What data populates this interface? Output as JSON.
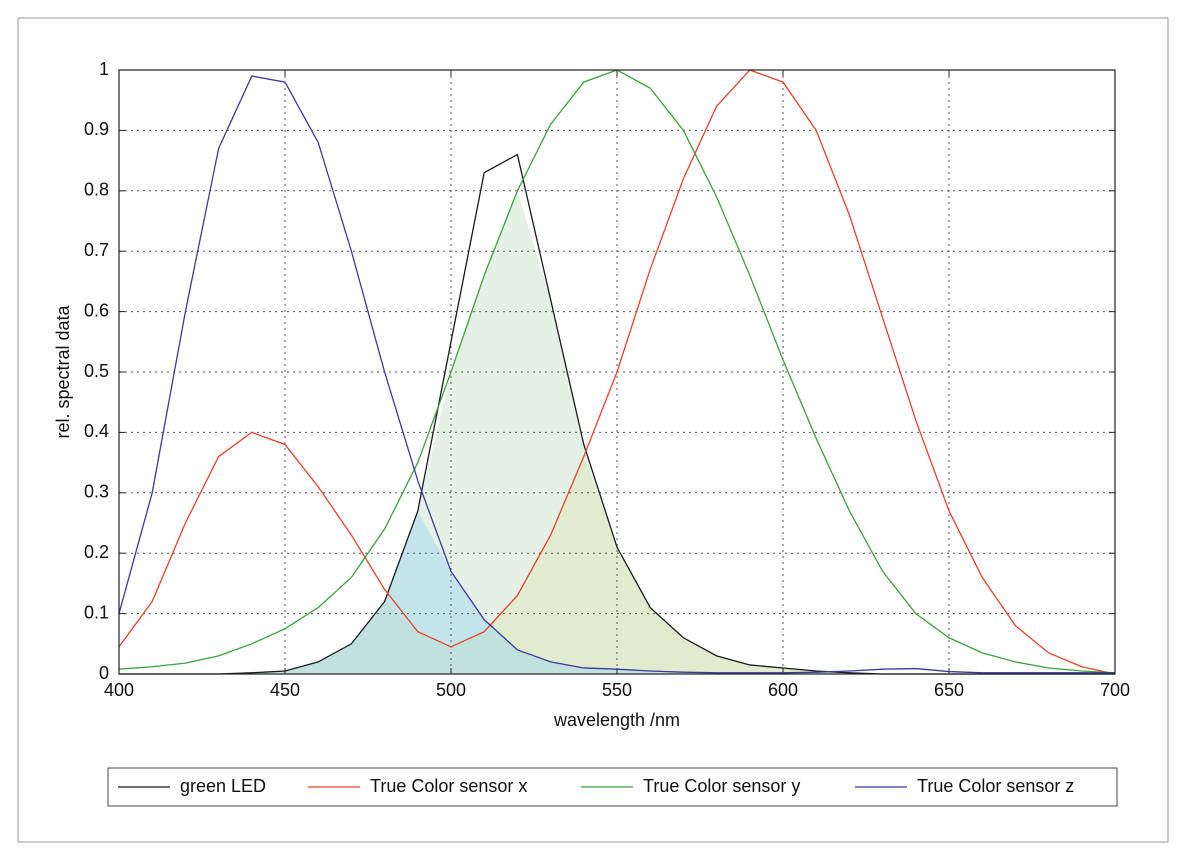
{
  "chart_data": {
    "type": "line",
    "x_label": "wavelength /nm",
    "y_label": "rel. spectral data",
    "x": [
      400,
      410,
      420,
      430,
      440,
      450,
      460,
      470,
      480,
      490,
      500,
      510,
      520,
      530,
      540,
      550,
      560,
      570,
      580,
      590,
      600,
      610,
      620,
      630,
      640,
      650,
      660,
      670,
      680,
      690,
      700
    ],
    "series": [
      {
        "name": "green LED",
        "color": "#1a1a1a",
        "values": [
          0,
          0,
          0,
          0,
          0.002,
          0.005,
          0.02,
          0.05,
          0.12,
          0.27,
          0.55,
          0.83,
          0.86,
          0.62,
          0.38,
          0.21,
          0.11,
          0.06,
          0.03,
          0.015,
          0.01,
          0.005,
          0.002,
          0,
          0,
          0,
          0,
          0,
          0,
          0,
          0
        ]
      },
      {
        "name": "True Color sensor x",
        "color": "#e8402a",
        "fill": "#f0e6a0",
        "values": [
          0.045,
          0.12,
          0.25,
          0.36,
          0.4,
          0.38,
          0.31,
          0.23,
          0.14,
          0.07,
          0.045,
          0.07,
          0.13,
          0.23,
          0.36,
          0.5,
          0.67,
          0.82,
          0.94,
          1,
          0.98,
          0.9,
          0.76,
          0.59,
          0.42,
          0.27,
          0.16,
          0.08,
          0.035,
          0.012,
          0
        ]
      },
      {
        "name": "True Color sensor y",
        "color": "#3aa33a",
        "fill": "#cfe6cf",
        "values": [
          0.008,
          0.012,
          0.018,
          0.03,
          0.05,
          0.075,
          0.11,
          0.16,
          0.24,
          0.35,
          0.5,
          0.66,
          0.8,
          0.91,
          0.98,
          1,
          0.97,
          0.9,
          0.79,
          0.66,
          0.52,
          0.39,
          0.27,
          0.17,
          0.1,
          0.06,
          0.035,
          0.02,
          0.01,
          0.005,
          0.002
        ]
      },
      {
        "name": "True Color sensor z",
        "color": "#3a3aa0",
        "fill": "#a8d8ee",
        "values": [
          0.1,
          0.3,
          0.6,
          0.87,
          0.99,
          0.98,
          0.88,
          0.7,
          0.5,
          0.32,
          0.17,
          0.09,
          0.04,
          0.02,
          0.01,
          0.008,
          0.005,
          0.003,
          0.002,
          0.002,
          0.002,
          0.003,
          0.005,
          0.008,
          0.009,
          0.004,
          0.002,
          0.002,
          0.002,
          0.002,
          0.002
        ]
      }
    ],
    "xlim": [
      400,
      700
    ],
    "ylim": [
      0,
      1
    ],
    "xticks": [
      400,
      450,
      500,
      550,
      600,
      650,
      700
    ],
    "yticks": [
      0,
      0.1,
      0.2,
      0.3,
      0.4,
      0.5,
      0.6,
      0.7,
      0.8,
      0.9,
      1
    ],
    "grid": true,
    "legend": "bottom"
  }
}
